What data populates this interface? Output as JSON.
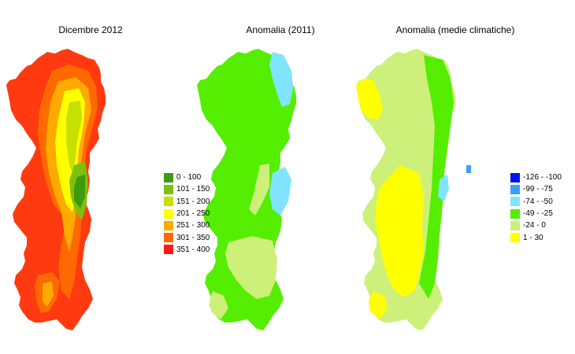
{
  "maps": [
    {
      "title": "Dicembre 2012",
      "fill": "#ff3a10"
    },
    {
      "title": "Anomalia (2011)",
      "fill": "#55ee00"
    },
    {
      "title": "Anomalia (medie climatiche)",
      "fill": "#ccf07a"
    }
  ],
  "legend_rain": {
    "items": [
      {
        "label": "0 - 100",
        "color": "#3f9a10"
      },
      {
        "label": "101 - 150",
        "color": "#7fbf10"
      },
      {
        "label": "151 - 200",
        "color": "#c8e000"
      },
      {
        "label": "201 - 250",
        "color": "#ffff00"
      },
      {
        "label": "251 - 300",
        "color": "#ffaa00"
      },
      {
        "label": "301 - 350",
        "color": "#ff6a00"
      },
      {
        "label": "351 - 400",
        "color": "#ff1a1a"
      }
    ]
  },
  "legend_anomaly": {
    "items": [
      {
        "label": "-126 - -100",
        "color": "#0010ee"
      },
      {
        "label": "-99 - -75",
        "color": "#3aa0ff"
      },
      {
        "label": "-74 - -50",
        "color": "#80e4ff"
      },
      {
        "label": "-49 - -25",
        "color": "#55ee00"
      },
      {
        "label": "-24 - 0",
        "color": "#ccf07a"
      },
      {
        "label": "1 - 30",
        "color": "#ffff00"
      }
    ]
  }
}
